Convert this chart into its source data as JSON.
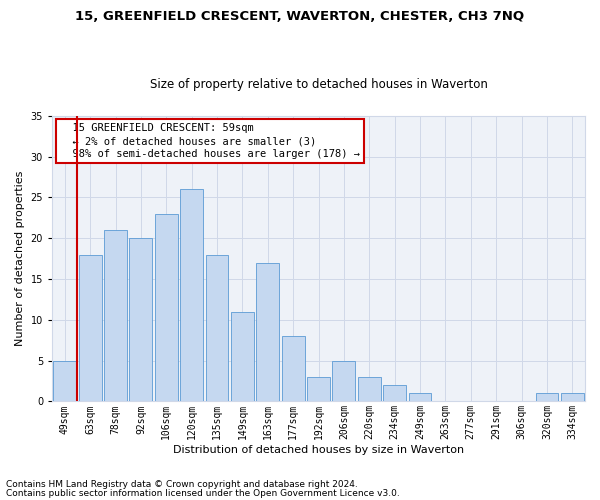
{
  "title1": "15, GREENFIELD CRESCENT, WAVERTON, CHESTER, CH3 7NQ",
  "title2": "Size of property relative to detached houses in Waverton",
  "xlabel": "Distribution of detached houses by size in Waverton",
  "ylabel": "Number of detached properties",
  "footnote1": "Contains HM Land Registry data © Crown copyright and database right 2024.",
  "footnote2": "Contains public sector information licensed under the Open Government Licence v3.0.",
  "categories": [
    "49sqm",
    "63sqm",
    "78sqm",
    "92sqm",
    "106sqm",
    "120sqm",
    "135sqm",
    "149sqm",
    "163sqm",
    "177sqm",
    "192sqm",
    "206sqm",
    "220sqm",
    "234sqm",
    "249sqm",
    "263sqm",
    "277sqm",
    "291sqm",
    "306sqm",
    "320sqm",
    "334sqm"
  ],
  "values": [
    5,
    18,
    21,
    20,
    23,
    26,
    18,
    11,
    17,
    8,
    3,
    5,
    3,
    2,
    1,
    0,
    0,
    0,
    0,
    1,
    1
  ],
  "bar_color": "#c5d8f0",
  "bar_edge_color": "#5b9bd5",
  "grid_color": "#d0d8e8",
  "background_color": "#eef2f8",
  "annotation_line1": "  15 GREENFIELD CRESCENT: 59sqm",
  "annotation_line2": "  ← 2% of detached houses are smaller (3)",
  "annotation_line3": "  98% of semi-detached houses are larger (178) →",
  "annotation_box_color": "#ffffff",
  "annotation_box_edge_color": "#cc0000",
  "redline_color": "#cc0000",
  "ylim": [
    0,
    35
  ],
  "yticks": [
    0,
    5,
    10,
    15,
    20,
    25,
    30,
    35
  ],
  "title1_fontsize": 9.5,
  "title2_fontsize": 8.5,
  "axis_label_fontsize": 8,
  "tick_fontsize": 7,
  "annotation_fontsize": 7.5,
  "footnote_fontsize": 6.5
}
